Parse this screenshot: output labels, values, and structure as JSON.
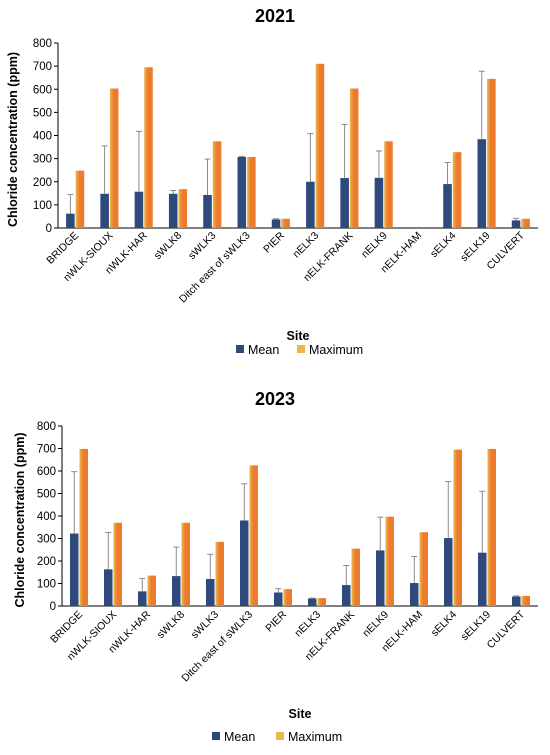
{
  "chart_data": [
    {
      "type": "bar",
      "title": "2021",
      "xlabel": "Site",
      "ylabel": "Chloride concentration (ppm)",
      "ylim": [
        0,
        800
      ],
      "yticks": [
        0,
        100,
        200,
        300,
        400,
        500,
        600,
        700,
        800
      ],
      "grid": false,
      "legend_position": "bottom",
      "categories": [
        "BRIDGE",
        "nWLK-SIOUX",
        "nWLK-HAR",
        "sWLK8",
        "sWLK3",
        "Ditch east of sWLK3",
        "PIER",
        "nELK3",
        "nELK-FRANK",
        "nELK9",
        "nELK-HAM",
        "sELK4",
        "sELK19",
        "CULVERT"
      ],
      "series": [
        {
          "name": "Mean",
          "color": "#2e4a7d",
          "values": [
            62,
            148,
            157,
            148,
            143,
            307,
            37,
            200,
            216,
            217,
            0,
            190,
            384,
            33
          ],
          "error_upper": [
            145,
            355,
            418,
            162,
            298,
            310,
            40,
            408,
            448,
            333,
            0,
            283,
            678,
            42
          ]
        },
        {
          "name": "Maximum",
          "color": "#ee7a2e",
          "highlight": "#e8b84a",
          "values": [
            248,
            603,
            695,
            168,
            375,
            307,
            40,
            710,
            603,
            375,
            0,
            328,
            645,
            40
          ]
        }
      ]
    },
    {
      "type": "bar",
      "title": "2023",
      "xlabel": "Site",
      "ylabel": "Chloride concentration (ppm)",
      "ylim": [
        0,
        800
      ],
      "yticks": [
        0,
        100,
        200,
        300,
        400,
        500,
        600,
        700,
        800
      ],
      "grid": false,
      "legend_position": "bottom",
      "categories": [
        "BRIDGE",
        "nWLK-SIOUX",
        "nWLK-HAR",
        "sWLK8",
        "sWLK3",
        "Ditch east of sWLK3",
        "PIER",
        "nELK3",
        "nELK-FRANK",
        "nELK9",
        "nELK-HAM",
        "sELK4",
        "sELK19",
        "CULVERT"
      ],
      "series": [
        {
          "name": "Mean",
          "color": "#2e4a7d",
          "values": [
            322,
            163,
            65,
            133,
            120,
            380,
            60,
            33,
            93,
            247,
            102,
            302,
            237,
            42
          ],
          "error_upper": [
            597,
            327,
            122,
            262,
            230,
            543,
            77,
            35,
            180,
            395,
            220,
            553,
            510,
            45
          ]
        },
        {
          "name": "Maximum",
          "color": "#ee7a2e",
          "highlight": "#e8b84a",
          "values": [
            698,
            370,
            135,
            370,
            285,
            625,
            75,
            35,
            255,
            397,
            328,
            695,
            698,
            45
          ]
        }
      ]
    }
  ]
}
